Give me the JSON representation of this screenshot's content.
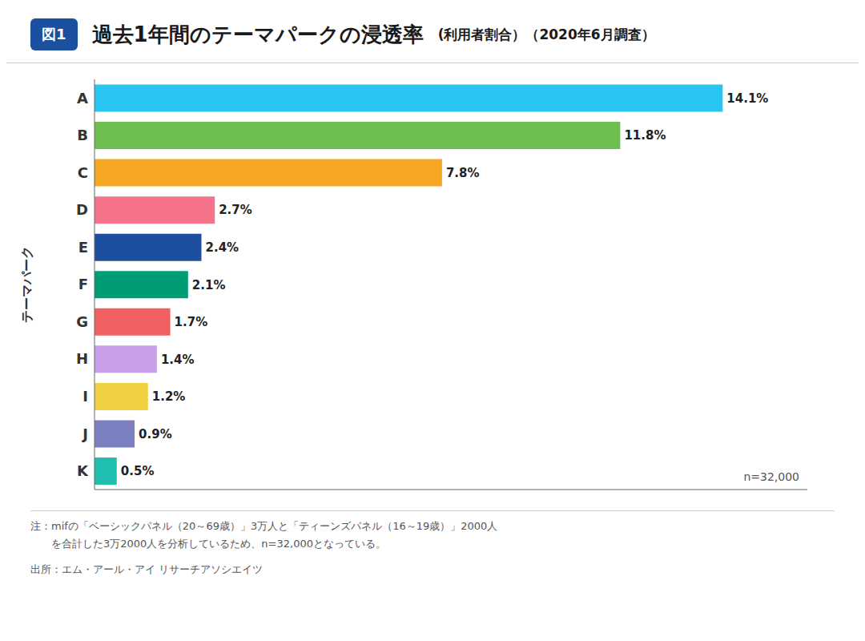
{
  "chart_data": {
    "type": "bar",
    "orientation": "horizontal",
    "title": "過去1年間のテーマパークの浸透率",
    "subtitle": "(利用者割合）（2020年6月調査）",
    "ylabel": "テーマパーク",
    "categories": [
      "A",
      "B",
      "C",
      "D",
      "E",
      "F",
      "G",
      "H",
      "I",
      "J",
      "K"
    ],
    "values": [
      14.1,
      11.8,
      7.8,
      2.7,
      2.4,
      2.1,
      1.7,
      1.4,
      1.2,
      0.9,
      0.5
    ],
    "value_labels": [
      "14.1%",
      "11.8%",
      "7.8%",
      "2.7%",
      "2.4%",
      "2.1%",
      "1.7%",
      "1.4%",
      "1.2%",
      "0.9%",
      "0.5%"
    ],
    "colors": [
      "#29C4F0",
      "#6DC050",
      "#F5A623",
      "#F4738B",
      "#1D4F9F",
      "#009C75",
      "#F06060",
      "#C8A0E8",
      "#F0D040",
      "#7B80C0",
      "#20C0B0"
    ],
    "xlim": [
      0,
      16.0
    ],
    "data_labels": true,
    "tick_labels": "y",
    "grid": false,
    "annotations": [
      "図1",
      "n=32,000",
      "注：mifの「ベーシックパネル（20～69歳）」3万人と「ティーンズパネル（16～19歳）」2000人",
      "　　を合計した3万2000人を分析しているため、n=32,000となっている。",
      "出所：エム・アール・アイ リサーチアソシエイツ"
    ]
  }
}
